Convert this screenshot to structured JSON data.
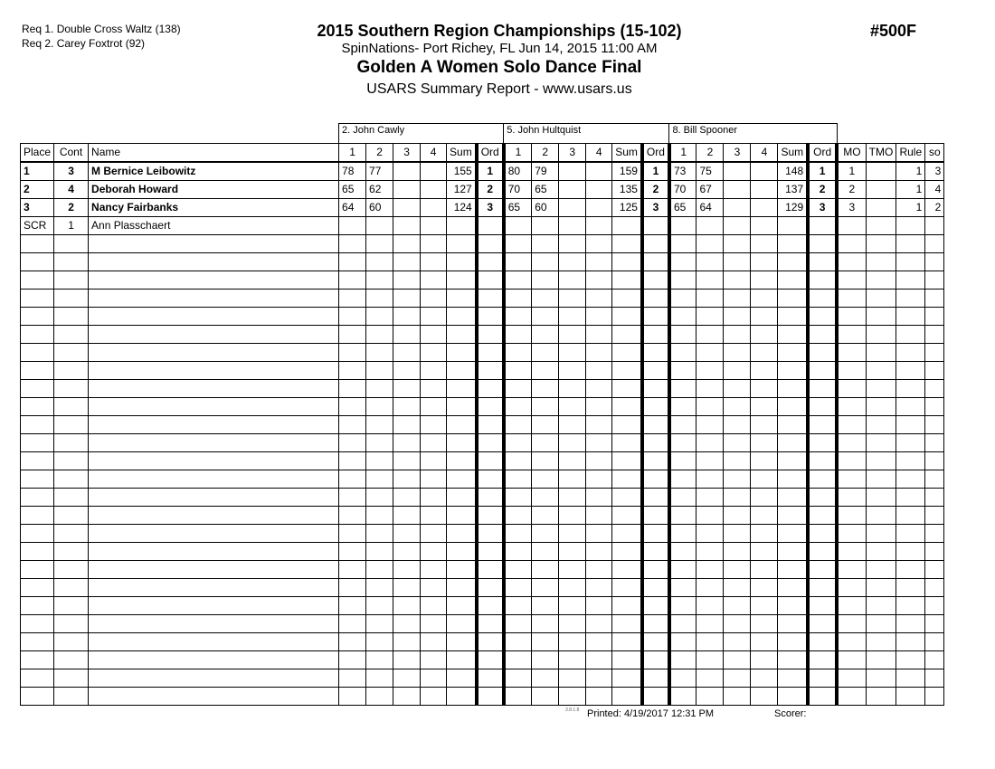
{
  "requirements": [
    "Req  1.  Double Cross Waltz (138)",
    "Req  2.  Carey Foxtrot (92)"
  ],
  "header": {
    "title": "2015 Southern Region Championships (15-102)",
    "venue": "SpinNations- Port Richey, FL  Jun 14, 2015  11:00 AM",
    "event": "Golden A Women Solo Dance Final",
    "report": "USARS Summary Report - www.usars.us",
    "event_number": "#500F"
  },
  "judges": [
    "2.  John Cawly",
    "5.  John Hultquist",
    "8.  Bill Spooner"
  ],
  "columns": {
    "place": "Place",
    "cont": "Cont",
    "name": "Name",
    "judge_cols": [
      "1",
      "2",
      "3",
      "4",
      "Sum",
      "Ord"
    ],
    "mo": "MO",
    "tmo": "TMO",
    "rule": "Rule",
    "so": "so"
  },
  "rows": [
    {
      "place": "1",
      "cont": "3",
      "name": "M Bernice Leibowitz",
      "scores": [
        [
          "78",
          "77",
          "",
          "",
          "155",
          "1"
        ],
        [
          "80",
          "79",
          "",
          "",
          "159",
          "1"
        ],
        [
          "73",
          "75",
          "",
          "",
          "148",
          "1"
        ]
      ],
      "mo": "1",
      "tmo": "",
      "rule": "1",
      "so": "3"
    },
    {
      "place": "2",
      "cont": "4",
      "name": "Deborah Howard",
      "scores": [
        [
          "65",
          "62",
          "",
          "",
          "127",
          "2"
        ],
        [
          "70",
          "65",
          "",
          "",
          "135",
          "2"
        ],
        [
          "70",
          "67",
          "",
          "",
          "137",
          "2"
        ]
      ],
      "mo": "2",
      "tmo": "",
      "rule": "1",
      "so": "4"
    },
    {
      "place": "3",
      "cont": "2",
      "name": "Nancy Fairbanks",
      "scores": [
        [
          "64",
          "60",
          "",
          "",
          "124",
          "3"
        ],
        [
          "65",
          "60",
          "",
          "",
          "125",
          "3"
        ],
        [
          "65",
          "64",
          "",
          "",
          "129",
          "3"
        ]
      ],
      "mo": "3",
      "tmo": "",
      "rule": "1",
      "so": "2"
    },
    {
      "place": "SCR",
      "cont": "1",
      "name": "Ann Plasschaert",
      "scores": [
        [
          "",
          "",
          "",
          "",
          "",
          ""
        ],
        [
          "",
          "",
          "",
          "",
          "",
          ""
        ],
        [
          "",
          "",
          "",
          "",
          "",
          ""
        ]
      ],
      "mo": "",
      "tmo": "",
      "rule": "",
      "so": ""
    }
  ],
  "footer": {
    "version": "3.8.1.8",
    "printed": "Printed:  4/19/2017  12:31 PM",
    "scorer": "Scorer:"
  }
}
